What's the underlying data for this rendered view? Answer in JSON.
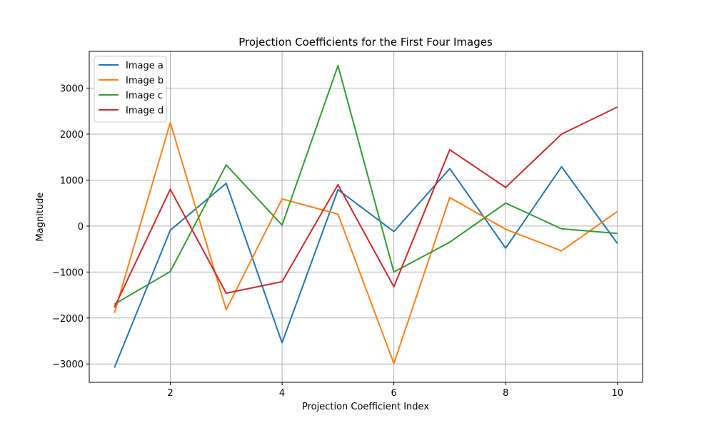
{
  "chart_data": {
    "type": "line",
    "title": "Projection Coefficients for the First Four Images",
    "xlabel": "Projection Coefficient Index",
    "ylabel": "Magnitude",
    "x": [
      1,
      2,
      3,
      4,
      5,
      6,
      7,
      8,
      9,
      10
    ],
    "xlim": [
      0.55,
      10.45
    ],
    "ylim": [
      -3400,
      3800
    ],
    "xticks": [
      2,
      4,
      6,
      8,
      10
    ],
    "yticks": [
      -3000,
      -2000,
      -1000,
      0,
      1000,
      2000,
      3000
    ],
    "xtick_labels": [
      "2",
      "4",
      "6",
      "8",
      "10"
    ],
    "ytick_labels": [
      "−3000",
      "−2000",
      "−1000",
      "0",
      "1000",
      "2000",
      "3000"
    ],
    "grid": true,
    "legend_position": "top-left",
    "series": [
      {
        "name": "Image a",
        "color": "#1f77b4",
        "values": [
          -3080,
          -90,
          930,
          -2540,
          790,
          -120,
          1250,
          -480,
          1290,
          -380
        ]
      },
      {
        "name": "Image b",
        "color": "#ff7f0e",
        "values": [
          -1890,
          2250,
          -1820,
          590,
          260,
          -2990,
          620,
          -70,
          -540,
          320
        ]
      },
      {
        "name": "Image c",
        "color": "#2ca02c",
        "values": [
          -1700,
          -990,
          1330,
          20,
          3490,
          -1000,
          -350,
          500,
          -60,
          -160
        ]
      },
      {
        "name": "Image d",
        "color": "#d62728",
        "values": [
          -1770,
          800,
          -1460,
          -1210,
          900,
          -1320,
          1660,
          840,
          2000,
          2590
        ]
      }
    ]
  }
}
